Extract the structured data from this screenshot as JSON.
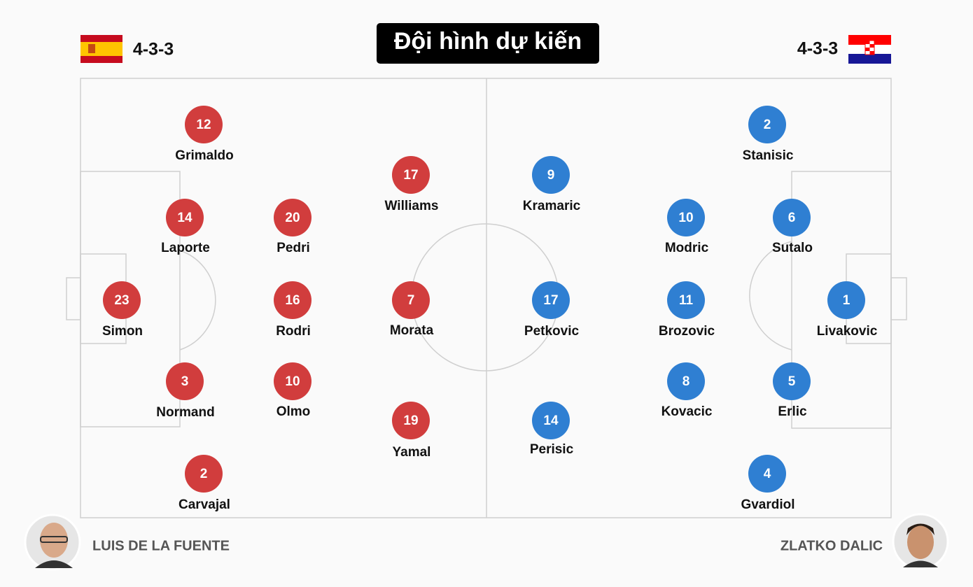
{
  "title": "Đội hình dự kiến",
  "teams": [
    {
      "formation": "4-3-3",
      "coach": "LUIS DE LA FUENTE",
      "players": [
        {
          "number": 12,
          "name": "Grimaldo"
        },
        {
          "number": 14,
          "name": "Laporte"
        },
        {
          "number": 23,
          "name": "Simon"
        },
        {
          "number": 3,
          "name": "Normand"
        },
        {
          "number": 2,
          "name": "Carvajal"
        },
        {
          "number": 20,
          "name": "Pedri"
        },
        {
          "number": 16,
          "name": "Rodri"
        },
        {
          "number": 10,
          "name": "Olmo"
        },
        {
          "number": 17,
          "name": "Williams"
        },
        {
          "number": 7,
          "name": "Morata"
        },
        {
          "number": 19,
          "name": "Yamal"
        }
      ]
    },
    {
      "formation": "4-3-3",
      "coach": "ZLATKO DALIC",
      "players": [
        {
          "number": 2,
          "name": "Stanisic"
        },
        {
          "number": 6,
          "name": "Sutalo"
        },
        {
          "number": 1,
          "name": "Livakovic"
        },
        {
          "number": 5,
          "name": "Erlic"
        },
        {
          "number": 4,
          "name": "Gvardiol"
        },
        {
          "number": 10,
          "name": "Modric"
        },
        {
          "number": 11,
          "name": "Brozovic"
        },
        {
          "number": 8,
          "name": "Kovacic"
        },
        {
          "number": 9,
          "name": "Kramaric"
        },
        {
          "number": 17,
          "name": "Petkovic"
        },
        {
          "number": 14,
          "name": "Perisic"
        }
      ]
    }
  ]
}
